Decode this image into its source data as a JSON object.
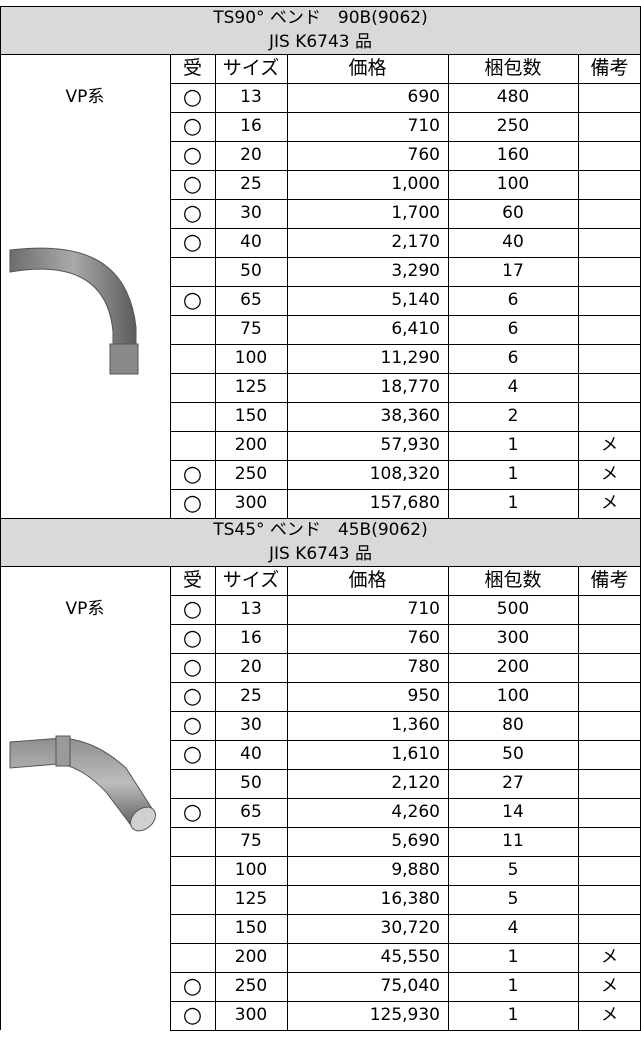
{
  "sections": [
    {
      "title": "TS90° ベンド　90B(9062)",
      "standard": "JIS K6743 品",
      "header": [
        "受",
        "サイズ",
        "価格",
        "梱包数",
        "備考"
      ],
      "label": "VP系",
      "rows": [
        [
          "○",
          "13",
          "690",
          "480",
          null
        ],
        [
          "○",
          "16",
          "710",
          "250",
          null
        ],
        [
          "○",
          "20",
          "760",
          "160",
          null
        ],
        [
          "○",
          "25",
          "1,000",
          "100",
          null
        ],
        [
          "○",
          "30",
          "1,700",
          "60",
          null
        ],
        [
          "○",
          "40",
          "2,170",
          "40",
          null
        ],
        [
          null,
          "50",
          "3,290",
          "17",
          null
        ],
        [
          "○",
          "65",
          "5,140",
          "6",
          null
        ],
        [
          null,
          "75",
          "6,410",
          "6",
          null
        ],
        [
          null,
          "100",
          "11,290",
          "6",
          null
        ],
        [
          null,
          "125",
          "18,770",
          "4",
          null
        ],
        [
          null,
          "150",
          "38,360",
          "2",
          null
        ],
        [
          null,
          "200",
          "57,930",
          "1",
          "メ"
        ],
        [
          "○",
          "250",
          "108,320",
          "1",
          "メ"
        ],
        [
          "○",
          "300",
          "157,680",
          "1",
          "メ"
        ]
      ]
    },
    {
      "title": "TS45° ベンド　45B(9062)",
      "standard": "JIS K6743 品",
      "header": [
        "受",
        "サイズ",
        "価格",
        "梱包数",
        "備考"
      ],
      "label": "VP系",
      "rows": [
        [
          "○",
          "13",
          "710",
          "500",
          null
        ],
        [
          "○",
          "16",
          "760",
          "300",
          null
        ],
        [
          "○",
          "20",
          "780",
          "200",
          null
        ],
        [
          "○",
          "25",
          "950",
          "100",
          null
        ],
        [
          "○",
          "30",
          "1,360",
          "80",
          null
        ],
        [
          "○",
          "40",
          "1,610",
          "50",
          null
        ],
        [
          null,
          "50",
          "2,120",
          "27",
          null
        ],
        [
          "○",
          "65",
          "4,260",
          "14",
          null
        ],
        [
          null,
          "75",
          "5,690",
          "11",
          null
        ],
        [
          null,
          "100",
          "9,880",
          "5",
          null
        ],
        [
          null,
          "125",
          "16,380",
          "5",
          null
        ],
        [
          null,
          "150",
          "30,720",
          "4",
          null
        ],
        [
          null,
          "200",
          "45,550",
          "1",
          "メ"
        ],
        [
          "○",
          "250",
          "75,040",
          "1",
          "メ"
        ],
        [
          "○",
          "300",
          "125,930",
          "1",
          "メ"
        ]
      ]
    }
  ]
}
